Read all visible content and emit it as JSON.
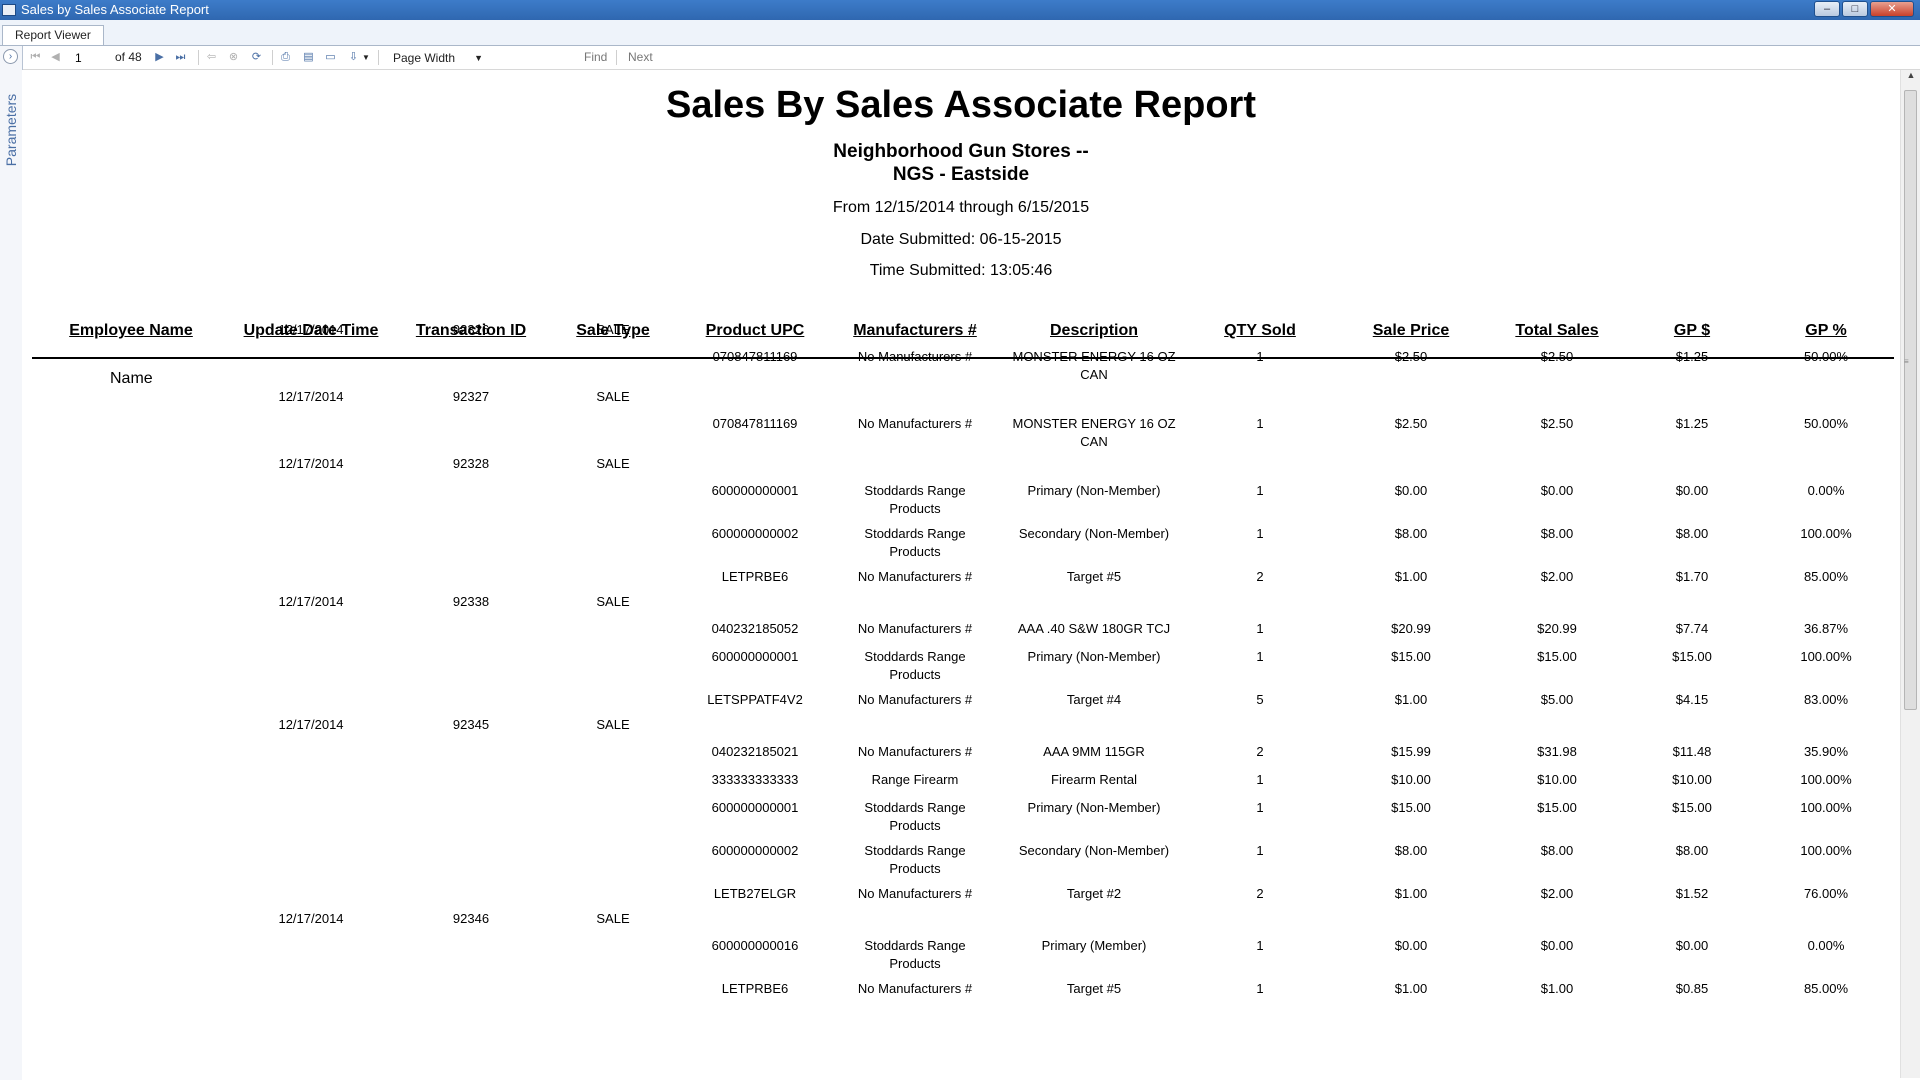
{
  "window": {
    "title": "Sales by Sales Associate Report",
    "buttons": [
      "–",
      "□",
      "✕"
    ]
  },
  "tab": {
    "label": "Report Viewer"
  },
  "toolbar": {
    "page_current": "1",
    "page_total_label": "of 48",
    "zoom": "Page Width",
    "find_label": "Find",
    "next_label": "Next"
  },
  "sidebar": {
    "parameters_label": "Parameters"
  },
  "report": {
    "title": "Sales By Sales Associate Report",
    "company_line1": "Neighborhood Gun Stores --",
    "company_line2": "NGS - Eastside",
    "date_range": "From 12/15/2014 through 6/15/2015",
    "date_submitted": "Date Submitted: 06-15-2015",
    "time_submitted": "Time Submitted: 13:05:46",
    "columns": [
      "Employee Name",
      "Update Date Time",
      "Transaction ID",
      "Sale Type",
      "Product UPC",
      "Manufacturers #",
      "Description",
      "QTY Sold",
      "Sale Price",
      "Total Sales",
      "GP $",
      "GP %"
    ],
    "employee_label": "Name",
    "transactions": [
      {
        "date": "12/17/2014",
        "id": "92326",
        "type": "SALE",
        "items": [
          {
            "upc": "070847811169",
            "mfr": [
              "No Manufacturers #"
            ],
            "desc": [
              "MONSTER ENERGY 16 OZ",
              "CAN"
            ],
            "qty": "1",
            "price": "$2.50",
            "total": "$2.50",
            "gp": "$1.25",
            "gpp": "50.00%"
          }
        ]
      },
      {
        "date": "12/17/2014",
        "id": "92327",
        "type": "SALE",
        "items": [
          {
            "upc": "070847811169",
            "mfr": [
              "No Manufacturers #"
            ],
            "desc": [
              "MONSTER ENERGY 16 OZ",
              "CAN"
            ],
            "qty": "1",
            "price": "$2.50",
            "total": "$2.50",
            "gp": "$1.25",
            "gpp": "50.00%"
          }
        ]
      },
      {
        "date": "12/17/2014",
        "id": "92328",
        "type": "SALE",
        "items": [
          {
            "upc": "600000000001",
            "mfr": [
              "Stoddards Range",
              "Products"
            ],
            "desc": [
              "Primary (Non-Member)"
            ],
            "qty": "1",
            "price": "$0.00",
            "total": "$0.00",
            "gp": "$0.00",
            "gpp": "0.00%"
          },
          {
            "upc": "600000000002",
            "mfr": [
              "Stoddards Range",
              "Products"
            ],
            "desc": [
              "Secondary (Non-Member)"
            ],
            "qty": "1",
            "price": "$8.00",
            "total": "$8.00",
            "gp": "$8.00",
            "gpp": "100.00%"
          },
          {
            "upc": "LETPRBE6",
            "mfr": [
              "No Manufacturers #"
            ],
            "desc": [
              "Target #5"
            ],
            "qty": "2",
            "price": "$1.00",
            "total": "$2.00",
            "gp": "$1.70",
            "gpp": "85.00%"
          }
        ]
      },
      {
        "date": "12/17/2014",
        "id": "92338",
        "type": "SALE",
        "items": [
          {
            "upc": "040232185052",
            "mfr": [
              "No Manufacturers #"
            ],
            "desc": [
              "AAA .40 S&W 180GR TCJ"
            ],
            "qty": "1",
            "price": "$20.99",
            "total": "$20.99",
            "gp": "$7.74",
            "gpp": "36.87%"
          },
          {
            "upc": "600000000001",
            "mfr": [
              "Stoddards Range",
              "Products"
            ],
            "desc": [
              "Primary (Non-Member)"
            ],
            "qty": "1",
            "price": "$15.00",
            "total": "$15.00",
            "gp": "$15.00",
            "gpp": "100.00%"
          },
          {
            "upc": "LETSPPATF4V2",
            "mfr": [
              "No Manufacturers #"
            ],
            "desc": [
              "Target #4"
            ],
            "qty": "5",
            "price": "$1.00",
            "total": "$5.00",
            "gp": "$4.15",
            "gpp": "83.00%"
          }
        ]
      },
      {
        "date": "12/17/2014",
        "id": "92345",
        "type": "SALE",
        "items": [
          {
            "upc": "040232185021",
            "mfr": [
              "No Manufacturers #"
            ],
            "desc": [
              "AAA 9MM 115GR"
            ],
            "qty": "2",
            "price": "$15.99",
            "total": "$31.98",
            "gp": "$11.48",
            "gpp": "35.90%"
          },
          {
            "upc": "333333333333",
            "mfr": [
              "Range Firearm"
            ],
            "desc": [
              "Firearm Rental"
            ],
            "qty": "1",
            "price": "$10.00",
            "total": "$10.00",
            "gp": "$10.00",
            "gpp": "100.00%"
          },
          {
            "upc": "600000000001",
            "mfr": [
              "Stoddards Range",
              "Products"
            ],
            "desc": [
              "Primary (Non-Member)"
            ],
            "qty": "1",
            "price": "$15.00",
            "total": "$15.00",
            "gp": "$15.00",
            "gpp": "100.00%"
          },
          {
            "upc": "600000000002",
            "mfr": [
              "Stoddards Range",
              "Products"
            ],
            "desc": [
              "Secondary (Non-Member)"
            ],
            "qty": "1",
            "price": "$8.00",
            "total": "$8.00",
            "gp": "$8.00",
            "gpp": "100.00%"
          },
          {
            "upc": "LETB27ELGR",
            "mfr": [
              "No Manufacturers #"
            ],
            "desc": [
              "Target #2"
            ],
            "qty": "2",
            "price": "$1.00",
            "total": "$2.00",
            "gp": "$1.52",
            "gpp": "76.00%"
          }
        ]
      },
      {
        "date": "12/17/2014",
        "id": "92346",
        "type": "SALE",
        "items": [
          {
            "upc": "600000000016",
            "mfr": [
              "Stoddards Range",
              "Products"
            ],
            "desc": [
              "Primary (Member)"
            ],
            "qty": "1",
            "price": "$0.00",
            "total": "$0.00",
            "gp": "$0.00",
            "gpp": "0.00%"
          },
          {
            "upc": "LETPRBE6",
            "mfr": [
              "No Manufacturers #"
            ],
            "desc": [
              "Target #5"
            ],
            "qty": "1",
            "price": "$1.00",
            "total": "$1.00",
            "gp": "$0.85",
            "gpp": "85.00%"
          }
        ]
      }
    ]
  }
}
